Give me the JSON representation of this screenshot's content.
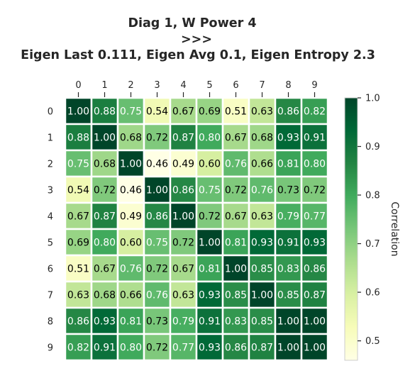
{
  "chart_data": {
    "type": "heatmap",
    "title_lines": [
      "Diag 1, W Power 4",
      ">>>",
      "Eigen Last 0.111, Eigen Avg 0.1, Eigen Entropy 2.3"
    ],
    "x_tick_labels": [
      "0",
      "1",
      "2",
      "3",
      "4",
      "5",
      "6",
      "7",
      "8",
      "9"
    ],
    "y_tick_labels": [
      "0",
      "1",
      "2",
      "3",
      "4",
      "5",
      "6",
      "7",
      "8",
      "9"
    ],
    "x_ticks_position": "top",
    "values": [
      [
        1.0,
        0.88,
        0.75,
        0.54,
        0.67,
        0.69,
        0.51,
        0.63,
        0.86,
        0.82
      ],
      [
        0.88,
        1.0,
        0.68,
        0.72,
        0.87,
        0.8,
        0.67,
        0.68,
        0.93,
        0.91
      ],
      [
        0.75,
        0.68,
        1.0,
        0.46,
        0.49,
        0.6,
        0.76,
        0.66,
        0.81,
        0.8
      ],
      [
        0.54,
        0.72,
        0.46,
        1.0,
        0.86,
        0.75,
        0.72,
        0.76,
        0.73,
        0.72
      ],
      [
        0.67,
        0.87,
        0.49,
        0.86,
        1.0,
        0.72,
        0.67,
        0.63,
        0.79,
        0.77
      ],
      [
        0.69,
        0.8,
        0.6,
        0.75,
        0.72,
        1.0,
        0.81,
        0.93,
        0.91,
        0.93
      ],
      [
        0.51,
        0.67,
        0.76,
        0.72,
        0.67,
        0.81,
        1.0,
        0.85,
        0.83,
        0.86
      ],
      [
        0.63,
        0.68,
        0.66,
        0.76,
        0.63,
        0.93,
        0.85,
        1.0,
        0.85,
        0.87
      ],
      [
        0.86,
        0.93,
        0.81,
        0.73,
        0.79,
        0.91,
        0.83,
        0.85,
        1.0,
        1.0
      ],
      [
        0.82,
        0.91,
        0.8,
        0.72,
        0.77,
        0.93,
        0.86,
        0.87,
        1.0,
        1.0
      ]
    ],
    "value_format": "0.00",
    "colormap": "YlGn",
    "vmin": 0.46,
    "vmax": 1.0,
    "colorbar": {
      "label": "Correlation",
      "ticks": [
        0.5,
        0.6,
        0.7,
        0.8,
        0.9,
        1.0
      ],
      "tick_labels": [
        "0.5",
        "0.6",
        "0.7",
        "0.8",
        "0.9",
        "1.0"
      ]
    },
    "annotation_colors": {
      "dark_text": "#000000",
      "light_text": "#ffffff"
    },
    "grid_line_color": "#ffffff"
  }
}
